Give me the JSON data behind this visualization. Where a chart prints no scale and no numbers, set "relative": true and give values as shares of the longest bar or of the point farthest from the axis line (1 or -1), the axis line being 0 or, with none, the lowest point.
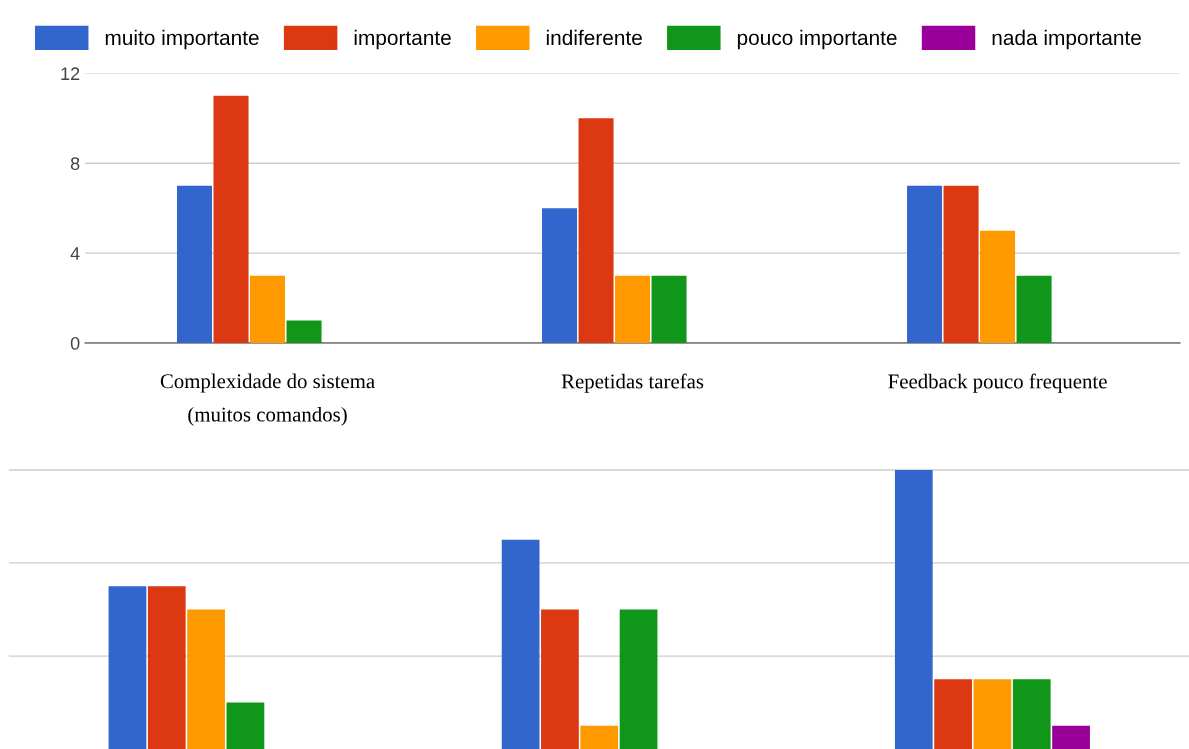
{
  "chart_data": [
    {
      "type": "bar",
      "categories": [
        "Complexidade do sistema\n(muitos comandos)",
        "Repetidas tarefas",
        "Feedback pouco frequente"
      ],
      "ylim": [
        0,
        12
      ],
      "yticks": [
        0,
        4,
        8,
        12
      ],
      "grid": "y",
      "legend": "top",
      "series": [
        {
          "name": "muito importante",
          "color": "#3366cc",
          "values": [
            7,
            6,
            7
          ]
        },
        {
          "name": "importante",
          "color": "#dc3912",
          "values": [
            11,
            10,
            7
          ]
        },
        {
          "name": "indiferente",
          "color": "#ff9900",
          "values": [
            3,
            3,
            5
          ]
        },
        {
          "name": "pouco importante",
          "color": "#109618",
          "values": [
            1,
            3,
            3
          ]
        },
        {
          "name": "nada importante",
          "color": "#990099",
          "values": [
            0,
            0,
            0
          ]
        }
      ]
    },
    {
      "type": "bar",
      "categories": [
        null,
        null,
        null
      ],
      "relative": true,
      "ref_lines": [
        {
          "axis": "y",
          "value": 0.333,
          "color": "#cccccc"
        },
        {
          "axis": "y",
          "value": 0.667,
          "color": "#cccccc"
        },
        {
          "axis": "y",
          "value": 1,
          "color": "#cccccc"
        }
      ],
      "series": [
        {
          "color": "#3366cc",
          "values": [
            0.583,
            0.75,
            1
          ]
        },
        {
          "color": "#dc3912",
          "values": [
            0.583,
            0.5,
            0.25
          ]
        },
        {
          "color": "#ff9900",
          "values": [
            0.5,
            0.083,
            0.25
          ]
        },
        {
          "color": "#109618",
          "values": [
            0.167,
            0.5,
            0.25
          ]
        },
        {
          "color": "#990099",
          "values": [
            0,
            0,
            0.083
          ]
        }
      ]
    }
  ]
}
